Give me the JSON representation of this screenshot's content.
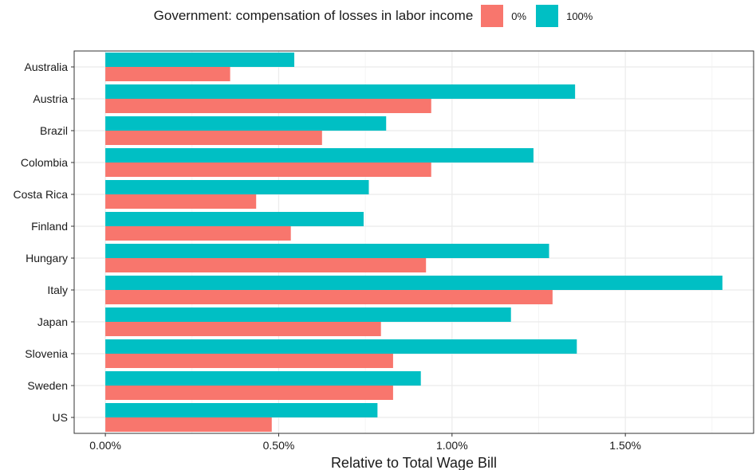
{
  "chart_data": {
    "type": "bar",
    "orientation": "horizontal",
    "title": "",
    "xlabel": "Relative to Total Wage Bill",
    "ylabel": "",
    "legend_title": "Government: compensation of losses in labor income",
    "legend_position": "top",
    "categories": [
      "Australia",
      "Austria",
      "Brazil",
      "Colombia",
      "Costa Rica",
      "Finland",
      "Hungary",
      "Italy",
      "Japan",
      "Slovenia",
      "Sweden",
      "US"
    ],
    "series": [
      {
        "name": "0%",
        "color": "#F8766D",
        "values": [
          0.36,
          0.94,
          0.625,
          0.94,
          0.435,
          0.535,
          0.925,
          1.29,
          0.795,
          0.83,
          0.83,
          0.48
        ]
      },
      {
        "name": "100%",
        "color": "#00BFC4",
        "values": [
          0.545,
          1.355,
          0.81,
          1.235,
          0.76,
          0.745,
          1.28,
          1.78,
          1.17,
          1.36,
          0.91,
          0.785
        ]
      }
    ],
    "xlim": [
      -0.09,
      1.87
    ],
    "xticks": [
      0,
      0.5,
      1.0,
      1.5
    ],
    "xtick_labels": [
      "0.00%",
      "0.50%",
      "1.00%",
      "1.50%"
    ],
    "grid": true
  }
}
